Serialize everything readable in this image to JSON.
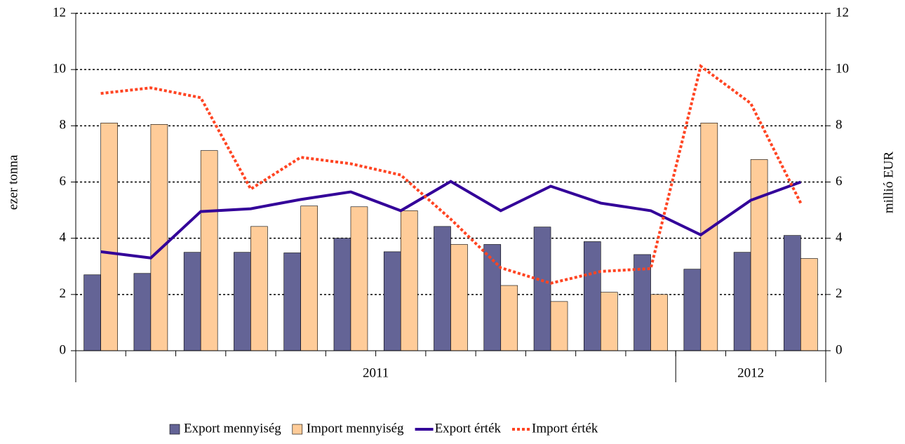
{
  "chart_data": {
    "type": "bar-line",
    "categories": [
      null,
      null,
      null,
      null,
      null,
      null,
      null,
      null,
      null,
      null,
      null,
      null,
      null,
      null,
      null
    ],
    "groups": [
      {
        "label": "2011",
        "size": 12
      },
      {
        "label": "2012",
        "size": 3
      }
    ],
    "y_label": "ezer tonna",
    "y2_label": "millió EUR",
    "ylim": [
      0,
      12
    ],
    "yticks": [
      0,
      2,
      4,
      6,
      8,
      10,
      12
    ],
    "y2lim": [
      0,
      12
    ],
    "y2ticks": [
      0,
      2,
      4,
      6,
      8,
      10,
      12
    ],
    "grid": true,
    "legend": "bottom",
    "series": [
      {
        "name": "Export mennyiség",
        "kind": "bar",
        "color": "#646496",
        "values": [
          2.7,
          2.75,
          3.5,
          3.5,
          3.48,
          4.0,
          3.52,
          4.42,
          3.78,
          4.4,
          3.88,
          3.42,
          2.9,
          3.5,
          4.1
        ]
      },
      {
        "name": "Import mennyiség",
        "kind": "bar",
        "color": "#ffcc99",
        "values": [
          8.1,
          8.05,
          7.12,
          4.42,
          5.15,
          5.12,
          4.98,
          3.78,
          2.32,
          1.75,
          2.08,
          2.0,
          8.1,
          6.8,
          3.28
        ]
      },
      {
        "name": "Export érték",
        "kind": "line",
        "axis": "y2",
        "color": "#330099",
        "values": [
          3.52,
          3.3,
          4.95,
          5.05,
          5.38,
          5.65,
          4.98,
          6.02,
          4.98,
          5.85,
          5.25,
          4.98,
          4.12,
          5.35,
          6.0
        ]
      },
      {
        "name": "Import érték",
        "kind": "line",
        "axis": "y2",
        "dashed": true,
        "color": "#ff4422",
        "values": [
          9.15,
          9.35,
          9.0,
          5.75,
          6.88,
          6.65,
          6.25,
          4.68,
          2.95,
          2.4,
          2.82,
          2.92,
          10.12,
          8.8,
          5.25
        ]
      }
    ]
  }
}
